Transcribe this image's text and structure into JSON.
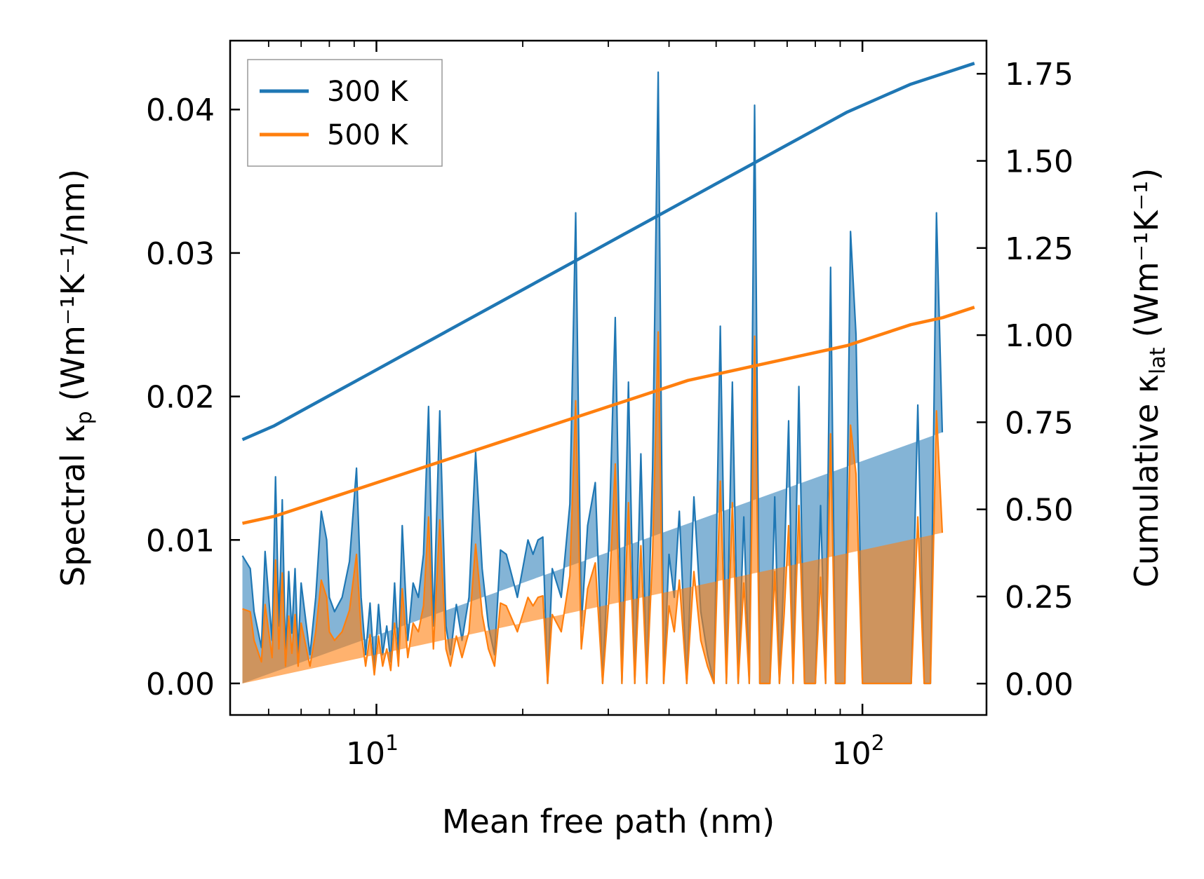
{
  "chart_data": {
    "type": "line",
    "xlabel": "Mean free path (nm)",
    "xscale": "log",
    "xlim": [
      5.0,
      180
    ],
    "y_left": {
      "label_prefix": "Spectral κ",
      "label_sub": "p",
      "label_units": "(Wm⁻¹K⁻¹/nm)",
      "lim": [
        -0.0022,
        0.0448
      ],
      "ticks": [
        "0.00",
        "0.01",
        "0.02",
        "0.03",
        "0.04"
      ]
    },
    "y_right": {
      "label_prefix": "Cumulative κ",
      "label_sub": "lat",
      "label_units": "(Wm⁻¹K⁻¹)",
      "lim": [
        -0.09,
        1.845
      ],
      "ticks": [
        "0.00",
        "0.25",
        "0.50",
        "0.75",
        "1.00",
        "1.25",
        "1.50",
        "1.75"
      ]
    },
    "x_tick_labels": [
      {
        "value": 10,
        "base": "10",
        "exp": "1"
      },
      {
        "value": 100,
        "base": "10",
        "exp": "2"
      }
    ],
    "legend": {
      "location": "upper-left",
      "entries": [
        {
          "label": "300 K",
          "color": "#1f77b4"
        },
        {
          "label": "500 K",
          "color": "#ff7f0e"
        }
      ]
    },
    "spectral_x": [
      5.3,
      5.5,
      5.6,
      5.8,
      5.9,
      6.1,
      6.2,
      6.3,
      6.4,
      6.5,
      6.6,
      6.7,
      6.8,
      6.9,
      7.0,
      7.3,
      7.5,
      7.7,
      7.9,
      8.0,
      8.2,
      8.5,
      8.8,
      9.1,
      9.3,
      9.5,
      9.7,
      9.9,
      10.1,
      10.3,
      10.5,
      10.7,
      10.9,
      11.1,
      11.3,
      11.6,
      11.9,
      12.2,
      12.5,
      12.8,
      13.1,
      13.5,
      13.9,
      14.2,
      14.6,
      15.0,
      15.5,
      16.0,
      16.5,
      17.0,
      17.5,
      18.0,
      18.5,
      19.0,
      19.5,
      20.0,
      20.5,
      21.0,
      21.5,
      22.0,
      22.5,
      23.0,
      24.0,
      25.0,
      25.7,
      26.4,
      27.2,
      28.2,
      29.2,
      30.1,
      31.0,
      32.0,
      33.0,
      34.0,
      35.0,
      36.0,
      37.0,
      38.0,
      39.0,
      40.0,
      41.0,
      42.0,
      43.5,
      45.0,
      46.5,
      48.0,
      49.5,
      51.0,
      52.5,
      54.0,
      55.5,
      57.0,
      58.5,
      60.0,
      61.5,
      63.0,
      64.5,
      66.0,
      67.5,
      69.0,
      70.5,
      72.0,
      74.0,
      76.0,
      78.0,
      80.0,
      82.0,
      84.0,
      86.0,
      88.0,
      90.0,
      92.0,
      94.5,
      97.0,
      100.0,
      103.0,
      106.0,
      109.0,
      112.0,
      115.0,
      118.0,
      122.0,
      126.0,
      130.0,
      134.0,
      138.0,
      142.0,
      146.0,
      150.0,
      155.0,
      160.0,
      165.0,
      170.0
    ],
    "series": [
      {
        "name": "300 K",
        "color": "#1f77b4",
        "cumulative": [
          0.7,
          0.74,
          0.79,
          0.84,
          0.89,
          0.94,
          0.99,
          1.04,
          1.09,
          1.14,
          1.19,
          1.24,
          1.29,
          1.34,
          1.39,
          1.44,
          1.49,
          1.54,
          1.59,
          1.64,
          1.68,
          1.72,
          1.75,
          1.78
        ],
        "spectral": [
          0.0089,
          0.008,
          0.005,
          0.0025,
          0.0092,
          0.003,
          0.0144,
          0.004,
          0.0128,
          0.002,
          0.0078,
          0.0035,
          0.008,
          0.002,
          0.007,
          0.002,
          0.006,
          0.012,
          0.01,
          0.006,
          0.005,
          0.006,
          0.0085,
          0.015,
          0.006,
          0.002,
          0.0056,
          0.001,
          0.0055,
          0.002,
          0.004,
          0.0015,
          0.007,
          0.002,
          0.011,
          0.003,
          0.007,
          0.006,
          0.009,
          0.0193,
          0.004,
          0.019,
          0.004,
          0.002,
          0.0055,
          0.003,
          0.006,
          0.0161,
          0.008,
          0.004,
          0.002,
          0.0093,
          0.009,
          0.0075,
          0.006,
          0.008,
          0.01,
          0.009,
          0.01,
          0.0102,
          0.0,
          0.008,
          0.006,
          0.0125,
          0.0328,
          0.004,
          0.011,
          0.014,
          0.0,
          0.01,
          0.0255,
          0.0,
          0.021,
          0.0,
          0.016,
          0.0,
          0.015,
          0.0426,
          0.0,
          0.009,
          0.006,
          0.012,
          0.0,
          0.013,
          0.005,
          0.002,
          0.0,
          0.0249,
          0.0,
          0.021,
          0.0,
          0.0116,
          0.0,
          0.0403,
          0.0,
          0.0,
          0.0,
          0.013,
          0.0,
          0.008,
          0.0183,
          0.0,
          0.0207,
          0.0,
          0.0,
          0.0,
          0.0124,
          0.0,
          0.029,
          0.0,
          0.0,
          0.0,
          0.0315,
          0.0243,
          0.0,
          0.0,
          0.0,
          0.0,
          0.0,
          0.0,
          0.0,
          0.0,
          0.0,
          0.0194,
          0.0,
          0.0,
          0.0328,
          0.0175
        ]
      },
      {
        "name": "500 K",
        "color": "#ff7f0e",
        "cumulative": [
          0.46,
          0.48,
          0.51,
          0.54,
          0.57,
          0.6,
          0.63,
          0.66,
          0.69,
          0.72,
          0.75,
          0.78,
          0.81,
          0.84,
          0.87,
          0.89,
          0.91,
          0.93,
          0.95,
          0.97,
          1.0,
          1.03,
          1.05,
          1.08
        ],
        "spectral": [
          0.0052,
          0.005,
          0.003,
          0.0015,
          0.0055,
          0.0018,
          0.0086,
          0.0024,
          0.0077,
          0.0012,
          0.0047,
          0.0021,
          0.0048,
          0.0012,
          0.0042,
          0.0012,
          0.0036,
          0.0072,
          0.006,
          0.0036,
          0.003,
          0.0036,
          0.0051,
          0.009,
          0.0036,
          0.0012,
          0.0034,
          0.0006,
          0.0033,
          0.0012,
          0.0024,
          0.0009,
          0.0042,
          0.0012,
          0.0066,
          0.0018,
          0.0042,
          0.0036,
          0.0054,
          0.0116,
          0.0024,
          0.0114,
          0.0024,
          0.0012,
          0.0033,
          0.0018,
          0.0036,
          0.0097,
          0.0048,
          0.0024,
          0.0012,
          0.0056,
          0.0054,
          0.0045,
          0.0036,
          0.0048,
          0.006,
          0.0054,
          0.006,
          0.0061,
          0.0,
          0.0048,
          0.0036,
          0.0075,
          0.0197,
          0.0024,
          0.0066,
          0.0084,
          0.0,
          0.006,
          0.0153,
          0.0,
          0.0126,
          0.0,
          0.0096,
          0.0,
          0.009,
          0.0245,
          0.0,
          0.0054,
          0.0036,
          0.0072,
          0.0,
          0.0078,
          0.003,
          0.0012,
          0.0,
          0.0141,
          0.0,
          0.0126,
          0.0,
          0.007,
          0.0,
          0.0242,
          0.0,
          0.0,
          0.0,
          0.0078,
          0.0,
          0.0048,
          0.011,
          0.0,
          0.0124,
          0.0,
          0.0,
          0.0,
          0.0074,
          0.0,
          0.0174,
          0.0,
          0.0,
          0.0,
          0.018,
          0.0146,
          0.0,
          0.0,
          0.0,
          0.0,
          0.0,
          0.0,
          0.0,
          0.0,
          0.0,
          0.0116,
          0.0,
          0.0,
          0.019,
          0.0105
        ]
      }
    ]
  }
}
